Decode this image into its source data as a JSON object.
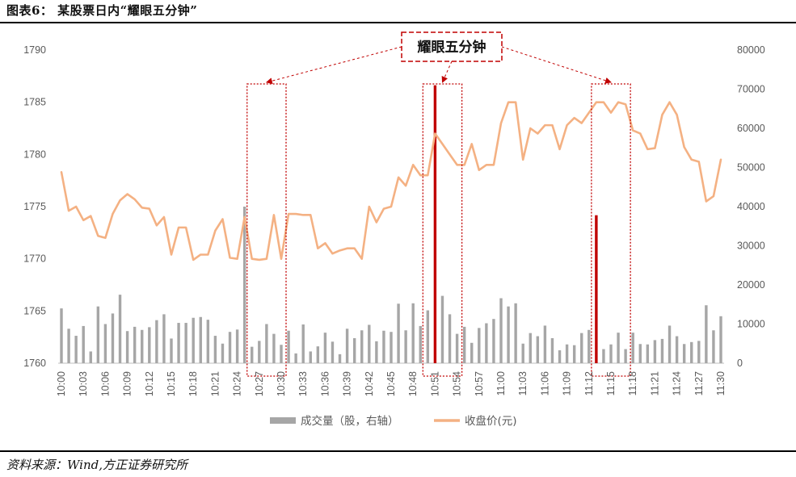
{
  "header": {
    "title": "图表6：  某股票日内“耀眼五分钟”"
  },
  "footer": {
    "source": "资料来源：Wind,方正证券研究所"
  },
  "callout": {
    "label": "耀眼五分钟"
  },
  "colors": {
    "volume": "#a6a6a6",
    "volume_highlight": "#c00000",
    "price": "#f4b183",
    "box": "#c00000"
  },
  "chart_data": {
    "type": "bar+line",
    "title": "",
    "x_ticks": [
      "10:00",
      "10:03",
      "10:06",
      "10:09",
      "10:12",
      "10:15",
      "10:18",
      "10:21",
      "10:24",
      "10:27",
      "10:30",
      "10:33",
      "10:36",
      "10:39",
      "10:42",
      "10:45",
      "10:48",
      "10:51",
      "10:54",
      "10:57",
      "11:00",
      "11:03",
      "11:06",
      "11:09",
      "11:12",
      "11:15",
      "11:18",
      "11:21",
      "11:24",
      "11:27",
      "11:30"
    ],
    "minutes_per_tick": 3,
    "left_axis": {
      "label": "",
      "range": [
        1760,
        1790
      ],
      "ticks": [
        1760,
        1765,
        1770,
        1775,
        1780,
        1785,
        1790
      ]
    },
    "right_axis": {
      "label": "",
      "range": [
        0,
        80000
      ],
      "ticks": [
        0,
        10000,
        20000,
        30000,
        40000,
        50000,
        60000,
        70000,
        80000
      ]
    },
    "legend": {
      "position": "bottom",
      "entries": [
        "成交量（股，右轴）",
        "收盘价(元)"
      ]
    },
    "highlight_windows": [
      [
        "10:26",
        "10:30"
      ],
      [
        "10:50",
        "10:54"
      ],
      [
        "11:13",
        "11:17"
      ]
    ],
    "series": [
      {
        "name": "成交量（股，右轴）",
        "type": "bar",
        "axis": "right",
        "values": [
          14000,
          8800,
          7000,
          9500,
          3000,
          14500,
          10000,
          12700,
          17500,
          8200,
          9300,
          8500,
          9200,
          11000,
          12500,
          6300,
          10300,
          10300,
          11600,
          11800,
          11100,
          7000,
          5000,
          8000,
          8600,
          40000,
          4200,
          5700,
          10000,
          7500,
          4700,
          8300,
          2500,
          9900,
          3000,
          4300,
          7800,
          5500,
          2300,
          8800,
          6400,
          8400,
          9800,
          5600,
          8300,
          8000,
          15200,
          8400,
          15300,
          9500,
          13500,
          71000,
          17200,
          12500,
          7500,
          9300,
          5200,
          9000,
          10200,
          11300,
          16600,
          14500,
          15300,
          5000,
          7700,
          6900,
          9600,
          6400,
          3300,
          4800,
          4600,
          7700,
          8500,
          37800,
          3600,
          4800,
          7800,
          3600,
          7800,
          4900,
          4800,
          5900,
          6200,
          9600,
          6900,
          4900,
          5400,
          5700,
          14800,
          8400,
          12000
        ],
        "highlight": [
          26,
          27,
          28,
          29,
          30,
          50,
          51,
          52,
          53,
          54,
          73,
          74,
          75,
          76,
          77
        ]
      },
      {
        "name": "收盘价(元)",
        "type": "line",
        "axis": "left",
        "values": [
          1778.3,
          1774.6,
          1775.0,
          1773.7,
          1774.1,
          1772.2,
          1772.0,
          1774.3,
          1775.6,
          1776.2,
          1775.7,
          1774.9,
          1774.8,
          1773.2,
          1774.0,
          1770.4,
          1773.0,
          1773.0,
          1769.9,
          1770.4,
          1770.4,
          1772.7,
          1773.8,
          1770.1,
          1770.0,
          1774.0,
          1770.0,
          1769.9,
          1770.0,
          1774.2,
          1770.0,
          1774.3,
          1774.3,
          1774.2,
          1774.2,
          1771.0,
          1771.5,
          1770.5,
          1770.8,
          1771.0,
          1771.0,
          1770.0,
          1775.0,
          1773.5,
          1774.8,
          1775.0,
          1777.8,
          1777.0,
          1779.0,
          1778.0,
          1778.0,
          1782.0,
          1781.0,
          1780.0,
          1779.0,
          1779.0,
          1781.0,
          1778.5,
          1779.0,
          1779.0,
          1783.0,
          1785.0,
          1785.0,
          1779.5,
          1782.5,
          1782.0,
          1782.8,
          1782.8,
          1780.5,
          1782.8,
          1783.5,
          1783.0,
          1784.0,
          1785.0,
          1785.0,
          1784.0,
          1785.0,
          1784.8,
          1782.3,
          1782.0,
          1780.5,
          1780.6,
          1783.8,
          1785.0,
          1783.8,
          1780.7,
          1779.5,
          1779.3,
          1775.5,
          1776.0,
          1779.5
        ]
      }
    ]
  }
}
